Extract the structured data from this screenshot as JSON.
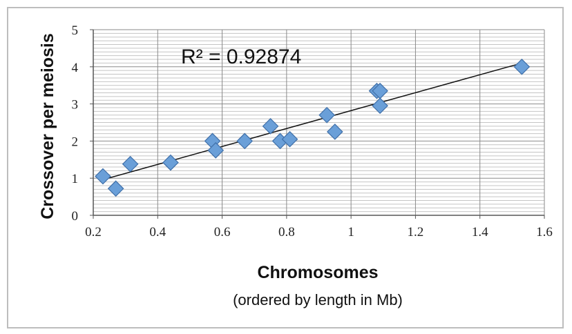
{
  "chart_data": {
    "type": "scatter",
    "annotation": "R² = 0.92874",
    "xlabel": "Chromosomes",
    "xlabel_sub": "(ordered by length in Mb)",
    "ylabel": "Crossover per meiosis",
    "xlim": [
      0.2,
      1.6
    ],
    "ylim": [
      0,
      5
    ],
    "xticks": [
      "0.2",
      "0.4",
      "0.6",
      "0.8",
      "1",
      "1.2",
      "1.4",
      "1.6"
    ],
    "yticks": [
      "0",
      "1",
      "2",
      "3",
      "4",
      "5"
    ],
    "grid": true,
    "marker_color": "#6a9fd8",
    "marker_edge": "#3f6fa8",
    "trendline": {
      "x": [
        0.23,
        1.53
      ],
      "y": [
        0.96,
        4.1
      ]
    },
    "points": [
      {
        "x": 0.23,
        "y": 1.05
      },
      {
        "x": 0.27,
        "y": 0.72
      },
      {
        "x": 0.315,
        "y": 1.38
      },
      {
        "x": 0.44,
        "y": 1.42
      },
      {
        "x": 0.57,
        "y": 2.0
      },
      {
        "x": 0.58,
        "y": 1.75
      },
      {
        "x": 0.67,
        "y": 2.0
      },
      {
        "x": 0.75,
        "y": 2.4
      },
      {
        "x": 0.78,
        "y": 2.0
      },
      {
        "x": 0.81,
        "y": 2.05
      },
      {
        "x": 0.925,
        "y": 2.7
      },
      {
        "x": 0.95,
        "y": 2.25
      },
      {
        "x": 1.08,
        "y": 3.35
      },
      {
        "x": 1.09,
        "y": 3.35
      },
      {
        "x": 1.09,
        "y": 2.95
      },
      {
        "x": 1.53,
        "y": 4.0
      }
    ]
  }
}
